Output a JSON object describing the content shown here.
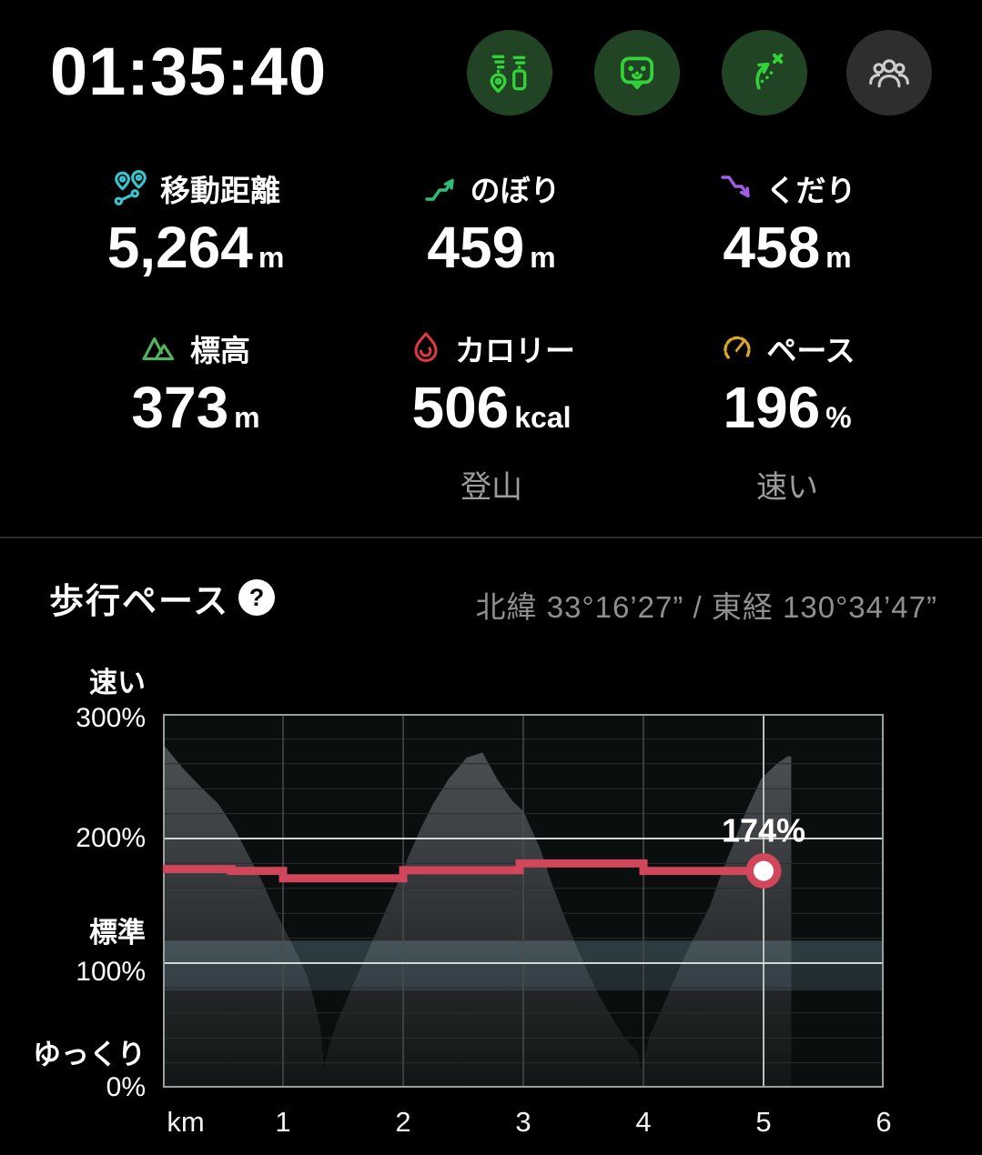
{
  "header": {
    "timer": "01:35:40",
    "buttons": [
      {
        "name": "location-sharing",
        "style": "green"
      },
      {
        "name": "field-memo",
        "style": "green"
      },
      {
        "name": "route-branch",
        "style": "green"
      },
      {
        "name": "group-members",
        "style": "gray"
      }
    ]
  },
  "stats": [
    {
      "label": "移動距離",
      "value": "5,264",
      "unit": "m",
      "icon": "route-pins-icon",
      "icon_color": "#38c4ce"
    },
    {
      "label": "のぼり",
      "value": "459",
      "unit": "m",
      "icon": "ascent-icon",
      "icon_color": "#2fbe77"
    },
    {
      "label": "くだり",
      "value": "458",
      "unit": "m",
      "icon": "descent-icon",
      "icon_color": "#a35ce6"
    },
    {
      "label": "標高",
      "value": "373",
      "unit": "m",
      "icon": "mountains-icon",
      "icon_color": "#53b45e"
    },
    {
      "label": "カロリー",
      "value": "506",
      "unit": "kcal",
      "sub": "登山",
      "icon": "flame-icon",
      "icon_color": "#e0393f"
    },
    {
      "label": "ペース",
      "value": "196",
      "unit": "%",
      "sub": "速い",
      "icon": "gauge-icon",
      "icon_color": "#dca62b"
    }
  ],
  "section": {
    "title": "歩行ペース",
    "help": "?",
    "coordinates": "北緯 33°16’27” / 東経 130°34’47”"
  },
  "chart_data": {
    "type": "area+line",
    "title": "歩行ペース",
    "xlabel": "km",
    "ylabel": "%",
    "xlim": [
      0,
      6
    ],
    "ylim": [
      0,
      300
    ],
    "y_axis_labels": [
      {
        "text": "速い",
        "pct": 325,
        "bold": true
      },
      {
        "text": "300%",
        "pct": 296,
        "bold": false
      },
      {
        "text": "200%",
        "pct": 200,
        "bold": false
      },
      {
        "text": "標準",
        "pct": 124,
        "bold": true
      },
      {
        "text": "100%",
        "pct": 93,
        "bold": false
      },
      {
        "text": "ゆっくり",
        "pct": 26,
        "bold": true
      },
      {
        "text": "0%",
        "pct": 0,
        "bold": false
      }
    ],
    "x_axis_labels": [
      {
        "text": "km",
        "km": 0.19
      },
      {
        "text": "1",
        "km": 1
      },
      {
        "text": "2",
        "km": 2
      },
      {
        "text": "3",
        "km": 3
      },
      {
        "text": "4",
        "km": 4
      },
      {
        "text": "5",
        "km": 5
      },
      {
        "text": "6",
        "km": 6
      }
    ],
    "grid": {
      "minor_step_pct": 20,
      "major_pcts": [
        100,
        200
      ],
      "vertical_km": [
        1,
        2,
        3,
        4,
        5
      ],
      "highlight_km": 5
    },
    "standard_band": {
      "low_pct": 78,
      "high_pct": 118,
      "split_pct": 100
    },
    "elevation_profile": [
      [
        0,
        276
      ],
      [
        0.16,
        257
      ],
      [
        0.33,
        240
      ],
      [
        0.46,
        228
      ],
      [
        0.59,
        209
      ],
      [
        0.71,
        187
      ],
      [
        0.82,
        167
      ],
      [
        0.92,
        145
      ],
      [
        1.02,
        126
      ],
      [
        1.12,
        107
      ],
      [
        1.2,
        90
      ],
      [
        1.26,
        70
      ],
      [
        1.31,
        48
      ],
      [
        1.33,
        30
      ],
      [
        1.34,
        15
      ],
      [
        1.39,
        36
      ],
      [
        1.45,
        53
      ],
      [
        1.55,
        75
      ],
      [
        1.65,
        97
      ],
      [
        1.75,
        119
      ],
      [
        1.85,
        141
      ],
      [
        1.95,
        163
      ],
      [
        2.05,
        187
      ],
      [
        2.15,
        209
      ],
      [
        2.25,
        228
      ],
      [
        2.38,
        248
      ],
      [
        2.53,
        265
      ],
      [
        2.66,
        269
      ],
      [
        2.78,
        248
      ],
      [
        2.91,
        230
      ],
      [
        3.0,
        222
      ],
      [
        3.14,
        192
      ],
      [
        3.24,
        163
      ],
      [
        3.34,
        138
      ],
      [
        3.44,
        114
      ],
      [
        3.54,
        92
      ],
      [
        3.64,
        72
      ],
      [
        3.74,
        56
      ],
      [
        3.85,
        39
      ],
      [
        3.95,
        29
      ],
      [
        3.98,
        14
      ],
      [
        4.05,
        41
      ],
      [
        4.15,
        63
      ],
      [
        4.25,
        85
      ],
      [
        4.35,
        107
      ],
      [
        4.45,
        126
      ],
      [
        4.55,
        145
      ],
      [
        4.65,
        172
      ],
      [
        4.75,
        196
      ],
      [
        4.85,
        221
      ],
      [
        4.98,
        248
      ],
      [
        5.11,
        260
      ],
      [
        5.2,
        266
      ],
      [
        5.23,
        266
      ]
    ],
    "pace_segments": [
      [
        0,
        0.57,
        175.5
      ],
      [
        0.57,
        1,
        174
      ],
      [
        1,
        2,
        168
      ],
      [
        2,
        2.97,
        174.5
      ],
      [
        2.97,
        4,
        180
      ],
      [
        4,
        5,
        174
      ]
    ],
    "endpoint": {
      "km": 5,
      "pct": 174,
      "label": "174%"
    },
    "colors": {
      "plot_bg": "#0b0e0e",
      "elev_top": "#4e5154",
      "elev_bottom": "#121516",
      "band_upper": "rgba(130,180,195,0.28)",
      "band_lower": "rgba(112,160,176,0.22)",
      "grid_minor": "#2a2d2d",
      "grid_vert": "#474c4c",
      "grid_highlight": "#b9c0c0",
      "grid_major": "#d9dede",
      "plot_border": "#9aa0a0",
      "pace": "#d0465b",
      "pace_dot_fill": "#ffffff",
      "label": "#ffffff"
    }
  }
}
